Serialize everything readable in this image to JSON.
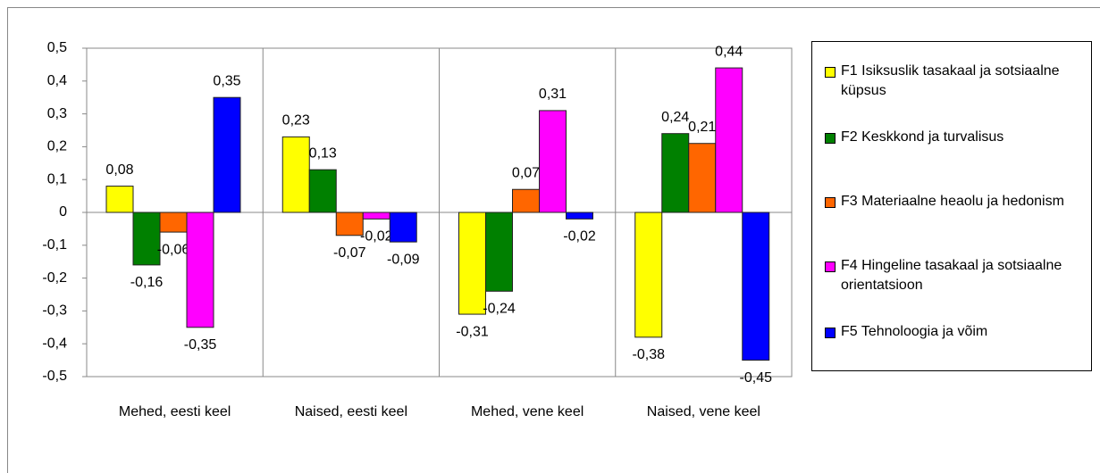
{
  "chart_data": {
    "type": "bar",
    "categories": [
      "Mehed, eesti keel",
      "Naised, eesti keel",
      "Mehed, vene keel",
      "Naised, vene keel"
    ],
    "series": [
      {
        "name": "F1 Isiksuslik tasakaal ja sotsiaalne küpsus",
        "color": "#ffff00",
        "values": [
          0.08,
          0.23,
          -0.31,
          -0.38
        ],
        "value_labels": [
          "0,08",
          "0,23",
          "-0,31",
          "-0,38"
        ]
      },
      {
        "name": "F2 Keskkond ja turvalisus",
        "color": "#008000",
        "values": [
          -0.16,
          0.13,
          -0.24,
          0.24
        ],
        "value_labels": [
          "-0,16",
          "0,13",
          "-0,24",
          "0,24"
        ]
      },
      {
        "name": "F3 Materiaalne heaolu ja hedonism",
        "color": "#ff6600",
        "values": [
          -0.06,
          -0.07,
          0.07,
          0.21
        ],
        "value_labels": [
          "-0,06",
          "-0,07",
          "0,07",
          "0,21"
        ]
      },
      {
        "name": "F4 Hingeline tasakaal ja sotsiaalne orientatsioon",
        "color": "#ff00ff",
        "values": [
          -0.35,
          -0.02,
          0.31,
          0.44
        ],
        "value_labels": [
          "-0,35",
          "-0,02",
          "0,31",
          "0,44"
        ]
      },
      {
        "name": "F5 Tehnoloogia ja võim",
        "color": "#0000ff",
        "values": [
          0.35,
          -0.09,
          -0.02,
          -0.45
        ],
        "value_labels": [
          "0,35",
          "-0,09",
          "-0,02",
          "-0,45"
        ]
      }
    ],
    "ylim": [
      -0.5,
      0.5
    ],
    "yticks": [
      {
        "value": 0.5,
        "label": "0,5"
      },
      {
        "value": 0.4,
        "label": "0,4"
      },
      {
        "value": 0.3,
        "label": "0,3"
      },
      {
        "value": 0.2,
        "label": "0,2"
      },
      {
        "value": 0.1,
        "label": "0,1"
      },
      0,
      {
        "value": -0.1,
        "label": "-0,1"
      },
      {
        "value": -0.2,
        "label": "-0,2"
      },
      {
        "value": -0.3,
        "label": "-0,3"
      },
      {
        "value": -0.4,
        "label": "-0,4"
      },
      {
        "value": -0.5,
        "label": "-0,5"
      }
    ],
    "legend": "right"
  }
}
